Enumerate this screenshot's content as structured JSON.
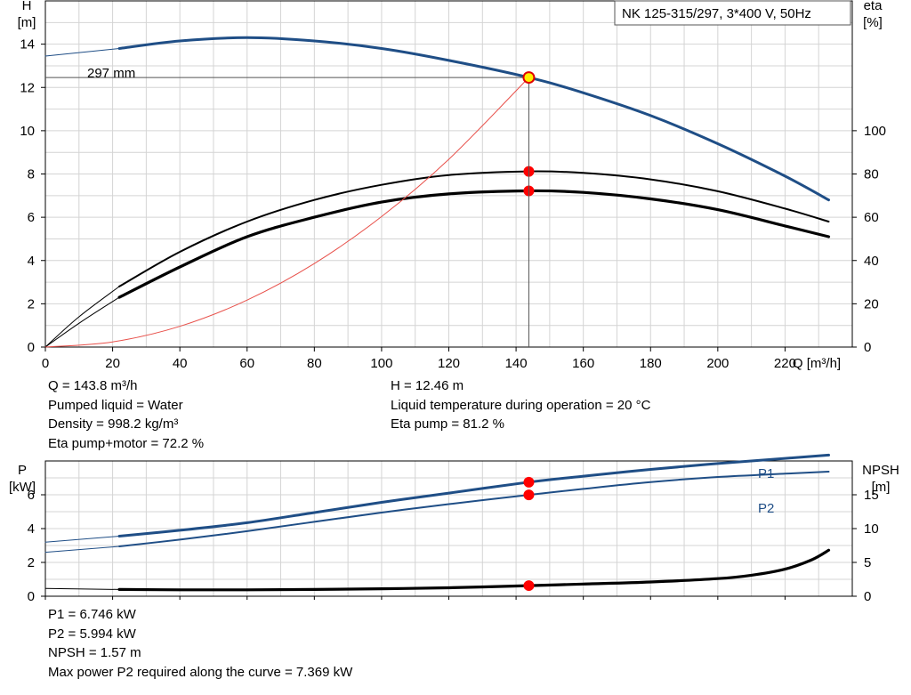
{
  "chart_data": [
    {
      "type": "line",
      "title": "NK 125-315/297, 3*400 V, 50Hz",
      "xlabel": "Q [m³/h]",
      "ylabel_left": [
        "H",
        "[m]"
      ],
      "ylabel_right": [
        "eta",
        "[%]"
      ],
      "xlim": [
        0,
        240
      ],
      "ylim_left": [
        0,
        16
      ],
      "ylim_right": [
        0,
        160
      ],
      "x_ticks": [
        0,
        20,
        40,
        60,
        80,
        100,
        120,
        140,
        160,
        180,
        200,
        220
      ],
      "y_ticks_left": [
        0,
        2,
        4,
        6,
        8,
        10,
        12,
        14
      ],
      "y_ticks_right": [
        0,
        20,
        40,
        60,
        80,
        100
      ],
      "grid": true,
      "curve_label": "297 mm",
      "series": [
        {
          "key": "head",
          "axis": "left",
          "color": "#1f4e86",
          "x": [
            22,
            40,
            60,
            80,
            100,
            120,
            143.8,
            160,
            180,
            200,
            220,
            233
          ],
          "y": [
            13.8,
            14.15,
            14.3,
            14.15,
            13.8,
            13.25,
            12.46,
            11.75,
            10.7,
            9.4,
            7.9,
            6.8
          ]
        },
        {
          "key": "head_ext",
          "axis": "left",
          "color": "#1f4e86",
          "x": [
            0,
            22
          ],
          "y": [
            13.45,
            13.8
          ]
        },
        {
          "key": "eta_pump",
          "axis": "right",
          "color": "#000000",
          "x": [
            22,
            40,
            60,
            80,
            100,
            120,
            143.8,
            160,
            180,
            200,
            220,
            233
          ],
          "y": [
            28,
            44,
            58,
            68,
            75,
            79.5,
            81.2,
            80.5,
            77.5,
            72,
            64,
            58
          ]
        },
        {
          "key": "eta_pump_ext",
          "axis": "right",
          "color": "#000000",
          "x": [
            0,
            10,
            22
          ],
          "y": [
            0,
            14,
            28
          ]
        },
        {
          "key": "eta_pump_motor",
          "axis": "right",
          "color": "#000000",
          "x": [
            22,
            40,
            60,
            80,
            100,
            120,
            143.8,
            160,
            180,
            200,
            220,
            233
          ],
          "y": [
            23,
            37,
            51,
            60,
            67,
            70.8,
            72.2,
            71.5,
            68.5,
            63.5,
            56,
            51
          ]
        },
        {
          "key": "eta_pump_motor_ext",
          "axis": "right",
          "color": "#000000",
          "x": [
            0,
            10,
            22
          ],
          "y": [
            0,
            11,
            23
          ]
        },
        {
          "key": "system_curve",
          "axis": "left",
          "color": "#e8504a",
          "x": [
            0,
            20,
            40,
            60,
            80,
            100,
            120,
            143.8
          ],
          "y": [
            0,
            0.24,
            0.96,
            2.17,
            3.86,
            6.03,
            8.68,
            12.46
          ]
        }
      ],
      "duty_point": {
        "x": 143.8,
        "y": 12.46
      },
      "markers": [
        {
          "axis": "right",
          "x": 143.8,
          "y": 81.2
        },
        {
          "axis": "right",
          "x": 143.8,
          "y": 72.2
        }
      ]
    },
    {
      "type": "line",
      "ylabel_left": [
        "P",
        "[kW]"
      ],
      "ylabel_right": [
        "NPSH",
        "[m]"
      ],
      "xlim": [
        0,
        240
      ],
      "ylim_left": [
        0,
        8
      ],
      "ylim_right": [
        0,
        20
      ],
      "y_ticks_left": [
        0,
        2,
        4,
        6
      ],
      "y_ticks_right": [
        0,
        5,
        10,
        15
      ],
      "grid": true,
      "series": [
        {
          "key": "p1",
          "name": "P1",
          "axis": "left",
          "color": "#1f4e86",
          "x": [
            22,
            40,
            60,
            80,
            100,
            120,
            143.8,
            160,
            180,
            200,
            220,
            233
          ],
          "y": [
            3.55,
            3.9,
            4.35,
            4.95,
            5.55,
            6.1,
            6.746,
            7.1,
            7.5,
            7.85,
            8.15,
            8.35
          ]
        },
        {
          "key": "p1_ext",
          "axis": "left",
          "color": "#1f4e86",
          "x": [
            0,
            22
          ],
          "y": [
            3.2,
            3.55
          ]
        },
        {
          "key": "p2",
          "name": "P2",
          "axis": "left",
          "color": "#1f4e86",
          "x": [
            22,
            40,
            60,
            80,
            100,
            120,
            143.8,
            160,
            180,
            200,
            220,
            233
          ],
          "y": [
            2.95,
            3.35,
            3.85,
            4.4,
            4.95,
            5.45,
            5.994,
            6.35,
            6.75,
            7.05,
            7.25,
            7.369
          ]
        },
        {
          "key": "p2_ext",
          "axis": "left",
          "color": "#1f4e86",
          "x": [
            0,
            22
          ],
          "y": [
            2.6,
            2.95
          ]
        },
        {
          "key": "npsh",
          "axis": "right",
          "color": "#000000",
          "x": [
            22,
            40,
            60,
            80,
            100,
            120,
            143.8,
            160,
            180,
            200,
            210,
            220,
            228,
            233
          ],
          "y": [
            1.0,
            0.95,
            0.95,
            1.0,
            1.1,
            1.25,
            1.57,
            1.8,
            2.1,
            2.6,
            3.1,
            4.0,
            5.4,
            6.8
          ]
        },
        {
          "key": "npsh_ext",
          "axis": "right",
          "color": "#000000",
          "x": [
            0,
            22
          ],
          "y": [
            1.15,
            1.0
          ]
        }
      ],
      "markers": [
        {
          "axis": "left",
          "x": 143.8,
          "y": 6.746
        },
        {
          "axis": "left",
          "x": 143.8,
          "y": 5.994
        },
        {
          "axis": "right",
          "x": 143.8,
          "y": 1.57
        }
      ]
    }
  ],
  "info_top_left": [
    "Q = 143.8 m³/h",
    "Pumped liquid = Water",
    "Density = 998.2 kg/m³",
    "Eta pump+motor = 72.2 %"
  ],
  "info_top_right": [
    "H = 12.46 m",
    "Liquid temperature during operation = 20 °C",
    "Eta pump = 81.2 %"
  ],
  "info_bottom": [
    "P1 = 6.746 kW",
    "P2 = 5.994 kW",
    "NPSH = 1.57 m",
    "Max power P2 required along the curve = 7.369 kW"
  ]
}
